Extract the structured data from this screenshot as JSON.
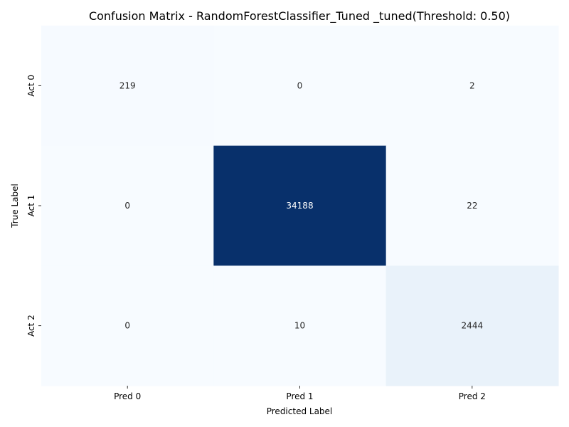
{
  "chart_data": {
    "type": "heatmap",
    "title": "Confusion Matrix - RandomForestClassifier_Tuned _tuned(Threshold: 0.50)",
    "xlabel": "Predicted Label",
    "ylabel": "True Label",
    "x_categories": [
      "Pred 0",
      "Pred 1",
      "Pred 2"
    ],
    "y_categories": [
      "Act 0",
      "Act 1",
      "Act 2"
    ],
    "values": [
      [
        219,
        0,
        2
      ],
      [
        0,
        34188,
        22
      ],
      [
        0,
        10,
        2444
      ]
    ],
    "colormap": "Blues",
    "colorbar": false,
    "grid": false
  }
}
